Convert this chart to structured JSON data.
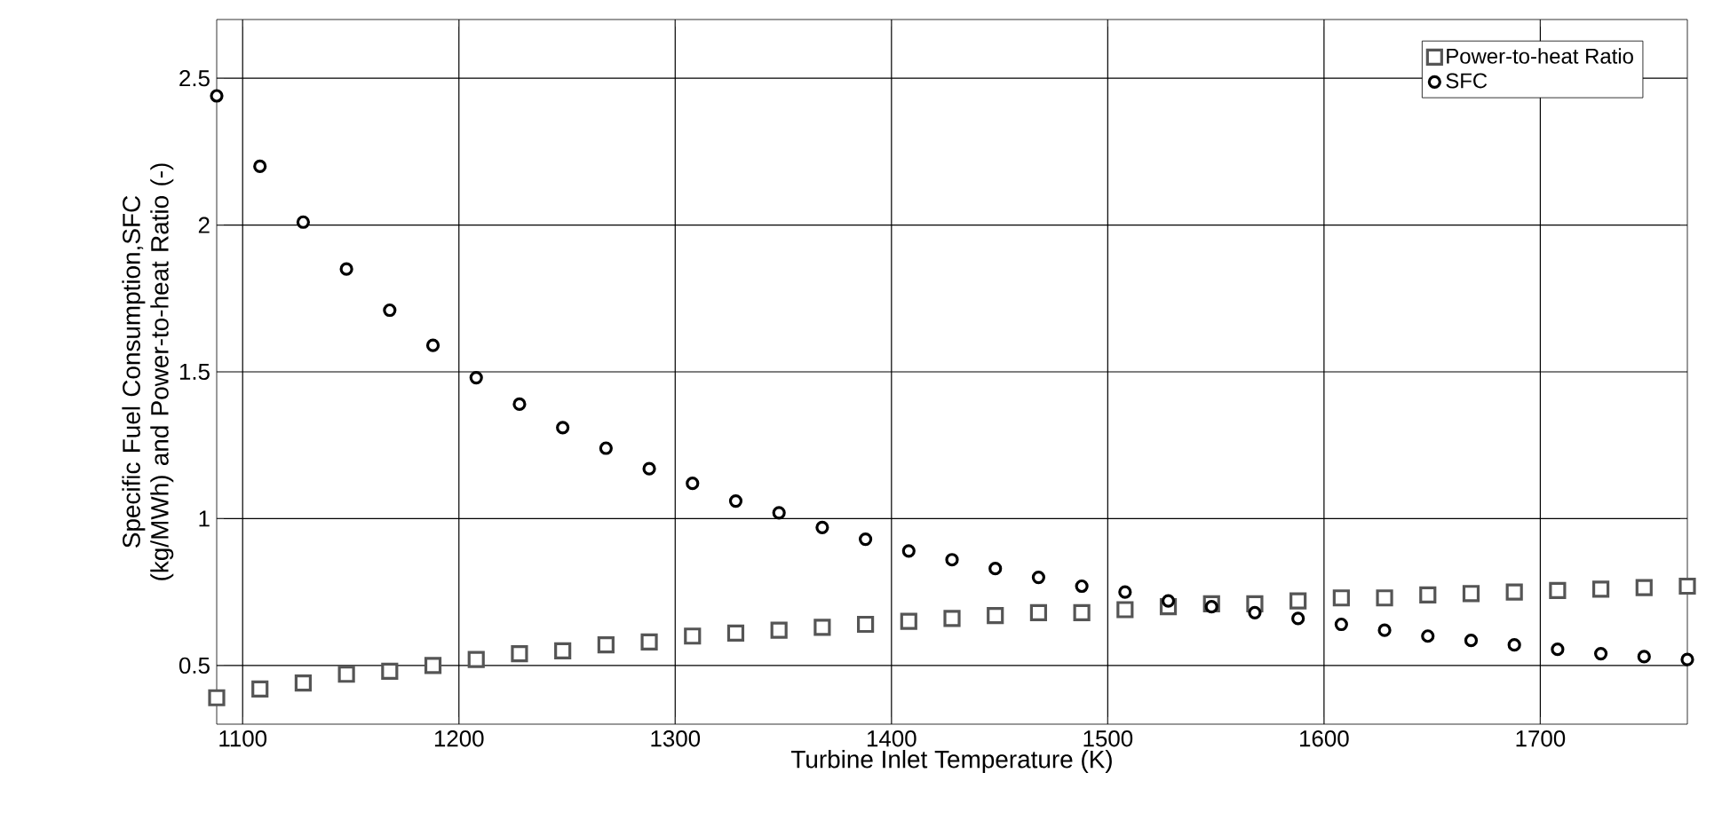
{
  "chart_data": {
    "type": "scatter",
    "xlabel": "Turbine Inlet Temperature (K)",
    "ylabel": "Specific Fuel Consumption,SFC (kg/MWh) and Power-to-heat Ratio (-)",
    "x": [
      1088,
      1108,
      1128,
      1148,
      1168,
      1188,
      1208,
      1228,
      1248,
      1268,
      1288,
      1308,
      1328,
      1348,
      1368,
      1388,
      1408,
      1428,
      1448,
      1468,
      1488,
      1508,
      1528,
      1548,
      1568,
      1588,
      1608,
      1628,
      1648,
      1668,
      1688,
      1708,
      1728,
      1748,
      1768
    ],
    "series": [
      {
        "name": "Power-to-heat Ratio",
        "color": "#555555",
        "marker": "square",
        "values": [
          0.39,
          0.42,
          0.44,
          0.47,
          0.48,
          0.5,
          0.52,
          0.54,
          0.55,
          0.57,
          0.58,
          0.6,
          0.61,
          0.62,
          0.63,
          0.64,
          0.65,
          0.66,
          0.67,
          0.68,
          0.68,
          0.69,
          0.7,
          0.71,
          0.71,
          0.72,
          0.73,
          0.73,
          0.74,
          0.745,
          0.75,
          0.755,
          0.76,
          0.765,
          0.77
        ]
      },
      {
        "name": "SFC",
        "color": "#000000",
        "marker": "circle",
        "values": [
          2.44,
          2.2,
          2.01,
          1.85,
          1.71,
          1.59,
          1.48,
          1.39,
          1.31,
          1.24,
          1.17,
          1.12,
          1.06,
          1.02,
          0.97,
          0.93,
          0.89,
          0.86,
          0.83,
          0.8,
          0.77,
          0.75,
          0.72,
          0.7,
          0.68,
          0.66,
          0.64,
          0.62,
          0.6,
          0.585,
          0.57,
          0.555,
          0.54,
          0.53,
          0.52
        ]
      }
    ],
    "xlim": [
      1088,
      1768
    ],
    "xticks": [
      1100,
      1200,
      1300,
      1400,
      1500,
      1600,
      1700
    ],
    "ylim": [
      0.3,
      2.7
    ],
    "yticks": [
      0.5,
      1,
      1.5,
      2,
      2.5
    ],
    "grid": true,
    "legend": "top right"
  }
}
